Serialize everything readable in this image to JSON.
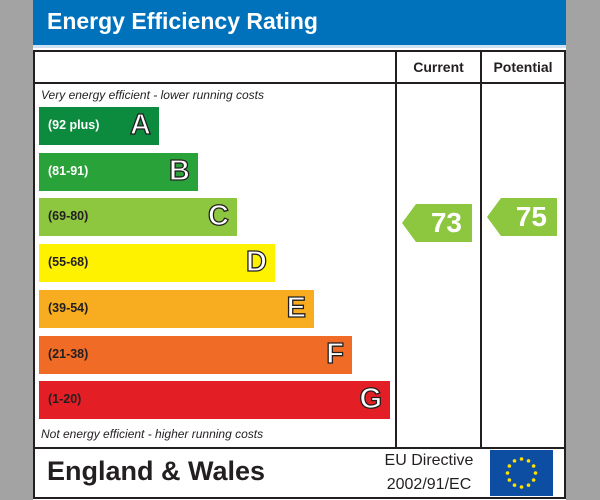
{
  "title": "Energy Efficiency Rating",
  "columns": {
    "current": "Current",
    "potential": "Potential"
  },
  "top_note": "Very energy efficient - lower running costs",
  "bottom_note": "Not energy efficient - higher running costs",
  "footer": {
    "region": "England & Wales",
    "directive_line1": "EU Directive",
    "directive_line2": "2002/91/EC",
    "flag": "eu-flag-icon"
  },
  "chart_data": {
    "type": "bar",
    "bands": [
      {
        "letter": "A",
        "range": "(92 plus)",
        "color": "#0c8a3e"
      },
      {
        "letter": "B",
        "range": "(81-91)",
        "color": "#2aa23a"
      },
      {
        "letter": "C",
        "range": "(69-80)",
        "color": "#8dc63f"
      },
      {
        "letter": "D",
        "range": "(55-68)",
        "color": "#fff200"
      },
      {
        "letter": "E",
        "range": "(39-54)",
        "color": "#f7ad1f"
      },
      {
        "letter": "F",
        "range": "(21-38)",
        "color": "#ef6b26"
      },
      {
        "letter": "G",
        "range": "(1-20)",
        "color": "#e31e25"
      }
    ],
    "current": {
      "value": "73",
      "band": "C",
      "color": "#8dc63f"
    },
    "potential": {
      "value": "75",
      "band": "C",
      "color": "#8dc63f"
    }
  }
}
